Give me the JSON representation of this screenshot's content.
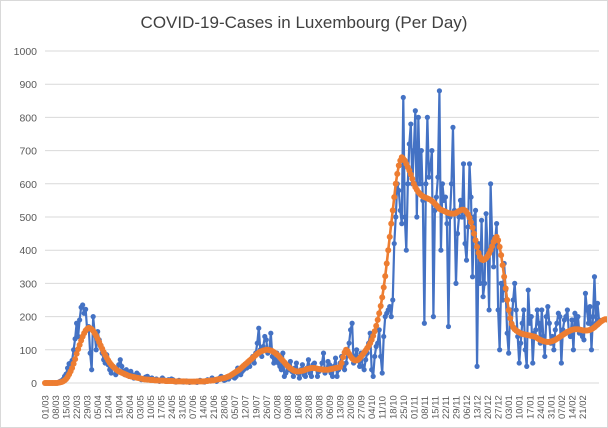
{
  "chart_data": {
    "type": "line",
    "title": "COVID-19-Cases in Luxembourg (Per Day)",
    "xlabel": "",
    "ylabel": "",
    "ylim": [
      0,
      1000
    ],
    "y_ticks": [
      0,
      100,
      200,
      300,
      400,
      500,
      600,
      700,
      800,
      900,
      1000
    ],
    "grid": true,
    "legend": "none",
    "x_start": "01/03",
    "x_end": "27/02",
    "x_tick_labels": [
      "01/03",
      "08/03",
      "15/03",
      "22/03",
      "29/03",
      "05/04",
      "12/04",
      "19/04",
      "26/04",
      "03/05",
      "10/05",
      "17/05",
      "24/05",
      "31/05",
      "07/06",
      "14/06",
      "21/06",
      "28/06",
      "05/07",
      "12/07",
      "19/07",
      "26/07",
      "02/08",
      "09/08",
      "16/08",
      "23/08",
      "30/08",
      "06/09",
      "13/09",
      "20/09",
      "27/09",
      "04/10",
      "11/10",
      "18/10",
      "25/10",
      "01/11",
      "08/11",
      "15/11",
      "22/11",
      "29/11",
      "06/12",
      "13/12",
      "20/12",
      "27/12",
      "03/01",
      "10/01",
      "17/01",
      "24/01",
      "31/01",
      "07/02",
      "14/02",
      "21/02"
    ],
    "series": [
      {
        "color": "#4472C4",
        "values": [
          0,
          0,
          0,
          0,
          0,
          0,
          0,
          0,
          0,
          2,
          5,
          7,
          11,
          20,
          27,
          45,
          58,
          60,
          68,
          100,
          133,
          180,
          140,
          190,
          228,
          235,
          210,
          222,
          160,
          170,
          90,
          40,
          200,
          150,
          100,
          155,
          130,
          110,
          90,
          70,
          60,
          85,
          55,
          40,
          30,
          50,
          45,
          25,
          40,
          55,
          70,
          50,
          35,
          25,
          40,
          30,
          20,
          35,
          25,
          15,
          20,
          30,
          25,
          15,
          10,
          12,
          15,
          18,
          20,
          12,
          10,
          15,
          8,
          10,
          12,
          8,
          5,
          10,
          15,
          10,
          8,
          5,
          10,
          8,
          12,
          10,
          5,
          3,
          5,
          8,
          6,
          4,
          3,
          5,
          6,
          4,
          2,
          3,
          4,
          5,
          3,
          2,
          5,
          8,
          6,
          4,
          3,
          5,
          10,
          8,
          6,
          15,
          10,
          8,
          5,
          10,
          15,
          20,
          12,
          8,
          10,
          15,
          12,
          20,
          25,
          18,
          15,
          20,
          45,
          30,
          25,
          35,
          40,
          55,
          45,
          60,
          50,
          70,
          80,
          60,
          90,
          120,
          165,
          100,
          80,
          110,
          140,
          130,
          90,
          100,
          150,
          80,
          60,
          70,
          90,
          60,
          50,
          40,
          90,
          20,
          30,
          55,
          40,
          65,
          35,
          20,
          45,
          60,
          30,
          15,
          40,
          55,
          25,
          20,
          45,
          70,
          30,
          20,
          55,
          60,
          45,
          20,
          35,
          40,
          60,
          90,
          30,
          40,
          65,
          55,
          30,
          20,
          50,
          75,
          20,
          40,
          60,
          80,
          50,
          40,
          60,
          90,
          120,
          160,
          180,
          60,
          80,
          100,
          70,
          50,
          90,
          50,
          40,
          70,
          90,
          120,
          150,
          40,
          20,
          80,
          110,
          120,
          160,
          80,
          30,
          140,
          200,
          210,
          220,
          230,
          200,
          250,
          420,
          500,
          600,
          580,
          520,
          480,
          860,
          500,
          400,
          600,
          720,
          780,
          600,
          700,
          820,
          500,
          800,
          600,
          700,
          550,
          180,
          600,
          800,
          620,
          650,
          700,
          200,
          520,
          560,
          620,
          880,
          400,
          600,
          550,
          560,
          480,
          170,
          500,
          600,
          770,
          520,
          300,
          450,
          500,
          550,
          500,
          660,
          420,
          370,
          470,
          660,
          560,
          320,
          500,
          520,
          50,
          420,
          300,
          490,
          260,
          300,
          510,
          400,
          220,
          600,
          440,
          350,
          430,
          480,
          220,
          100,
          300,
          250,
          360,
          280,
          150,
          90,
          220,
          180,
          250,
          300,
          220,
          140,
          60,
          120,
          180,
          220,
          100,
          50,
          280,
          180,
          200,
          60,
          150,
          160,
          220,
          180,
          120,
          220,
          140,
          80,
          200,
          230,
          180,
          120,
          140,
          100,
          160,
          180,
          210,
          200,
          60,
          160,
          190,
          200,
          220,
          150,
          140,
          190,
          100,
          210,
          170,
          200,
          150,
          160,
          140,
          130,
          270,
          220,
          180,
          230,
          100,
          200,
          320,
          180,
          240,
          190
        ]
      },
      {
        "color": "#ED7D31",
        "values": [
          0,
          0,
          0,
          0,
          0,
          0,
          0,
          0,
          0,
          1,
          2,
          3,
          5,
          8,
          12,
          18,
          26,
          35,
          45,
          58,
          72,
          88,
          102,
          115,
          128,
          140,
          150,
          158,
          163,
          166,
          165,
          162,
          157,
          150,
          142,
          133,
          123,
          113,
          103,
          93,
          84,
          76,
          68,
          61,
          55,
          50,
          46,
          42,
          38,
          35,
          33,
          31,
          29,
          27,
          25,
          23,
          21,
          20,
          19,
          18,
          17,
          16,
          15,
          14,
          13,
          12,
          11,
          11,
          10,
          10,
          9,
          9,
          9,
          8,
          8,
          8,
          7,
          7,
          7,
          7,
          6,
          6,
          6,
          6,
          6,
          6,
          5,
          5,
          5,
          5,
          5,
          5,
          5,
          5,
          4,
          4,
          4,
          4,
          4,
          4,
          4,
          5,
          5,
          5,
          5,
          5,
          5,
          6,
          6,
          7,
          7,
          8,
          8,
          9,
          10,
          11,
          12,
          13,
          14,
          15,
          16,
          18,
          20,
          22,
          25,
          28,
          31,
          34,
          37,
          40,
          44,
          48,
          52,
          56,
          60,
          64,
          68,
          72,
          76,
          80,
          84,
          88,
          91,
          94,
          96,
          98,
          99,
          100,
          100,
          99,
          98,
          96,
          93,
          90,
          86,
          82,
          77,
          72,
          67,
          62,
          57,
          52,
          48,
          44,
          41,
          38,
          36,
          35,
          35,
          35,
          36,
          37,
          38,
          40,
          42,
          43,
          44,
          45,
          45,
          45,
          44,
          43,
          42,
          41,
          41,
          40,
          40,
          40,
          40,
          41,
          42,
          43,
          44,
          45,
          46,
          47,
          48,
          60,
          78,
          92,
          100,
          96,
          88,
          80,
          74,
          70,
          68,
          68,
          70,
          74,
          80,
          86,
          92,
          98,
          105,
          112,
          120,
          130,
          142,
          156,
          172,
          190,
          210,
          232,
          258,
          288,
          322,
          360,
          400,
          440,
          480,
          520,
          560,
          600,
          630,
          655,
          670,
          680,
          675,
          670,
          660,
          650,
          640,
          628,
          615,
          600,
          590,
          582,
          575,
          570,
          566,
          562,
          560,
          558,
          556,
          554,
          552,
          548,
          545,
          540,
          535,
          530,
          525,
          522,
          520,
          518,
          516,
          514,
          512,
          511,
          510,
          510,
          510,
          512,
          515,
          518,
          520,
          522,
          522,
          520,
          515,
          508,
          498,
          484,
          468,
          450,
          430,
          410,
          392,
          380,
          372,
          370,
          372,
          376,
          382,
          390,
          400,
          412,
          425,
          435,
          440,
          430,
          410,
          385,
          355,
          320,
          285,
          250,
          220,
          195,
          178,
          168,
          162,
          158,
          155,
          152,
          150,
          148,
          147,
          146,
          145,
          144,
          143,
          142,
          141,
          140,
          138,
          135,
          132,
          130,
          128,
          126,
          125,
          124,
          124,
          124,
          125,
          126,
          128,
          130,
          133,
          136,
          139,
          142,
          145,
          148,
          151,
          154,
          156,
          158,
          160,
          161,
          162,
          162,
          162,
          161,
          160,
          159,
          158,
          158,
          158,
          159,
          160,
          162,
          165,
          168,
          172,
          176,
          180,
          184,
          187,
          190,
          192,
          192,
          190,
          188,
          186,
          185,
          185,
          186,
          188
        ]
      }
    ]
  }
}
